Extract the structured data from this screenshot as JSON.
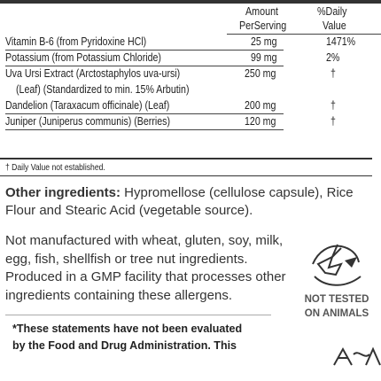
{
  "facts": {
    "header_amount": "Amount",
    "header_per": "PerServing",
    "header_daily": "%Daily",
    "header_value": "Value",
    "rows": [
      {
        "name": "Vitamin B-6 (from Pyridoxine HCl)",
        "amount": "25 mg",
        "dv": "1471%"
      },
      {
        "name": "Potassium (from Potassium Chloride)",
        "amount": "99 mg",
        "dv": "2%"
      },
      {
        "name": "Uva Ursi Extract (Arctostaphylos uva-ursi)",
        "amount": "250 mg",
        "dv": "†"
      },
      {
        "name": "(Leaf) (Standardized to min. 15% Arbutin)",
        "amount": "",
        "dv": ""
      },
      {
        "name": "Dandelion (Taraxacum officinale) (Leaf)",
        "amount": "200 mg",
        "dv": "†"
      },
      {
        "name": "Juniper (Juniperus communis) (Berries)",
        "amount": "120 mg",
        "dv": "†"
      }
    ],
    "footnote": "† Daily Value not established."
  },
  "other": {
    "label": "Other ingredients:",
    "text": " Hypromellose (cellulose capsule), Rice Flour and Stearic Acid (vegetable source)."
  },
  "allergen_text": "Not manufactured with wheat, gluten, soy, milk, egg, fish, shellfish or tree nut ingredients. Produced in a GMP facility that processes other ingredients containing these allergens.",
  "badge": {
    "line1": "NOT TESTED",
    "line2": "ON ANIMALS"
  },
  "disclaimer": {
    "line1": "*These statements have not been evaluated",
    "line2": "by the Food and Drug Administration. This"
  },
  "icons": [
    "leaping-bunny-icon",
    "certification-logo-icon"
  ]
}
